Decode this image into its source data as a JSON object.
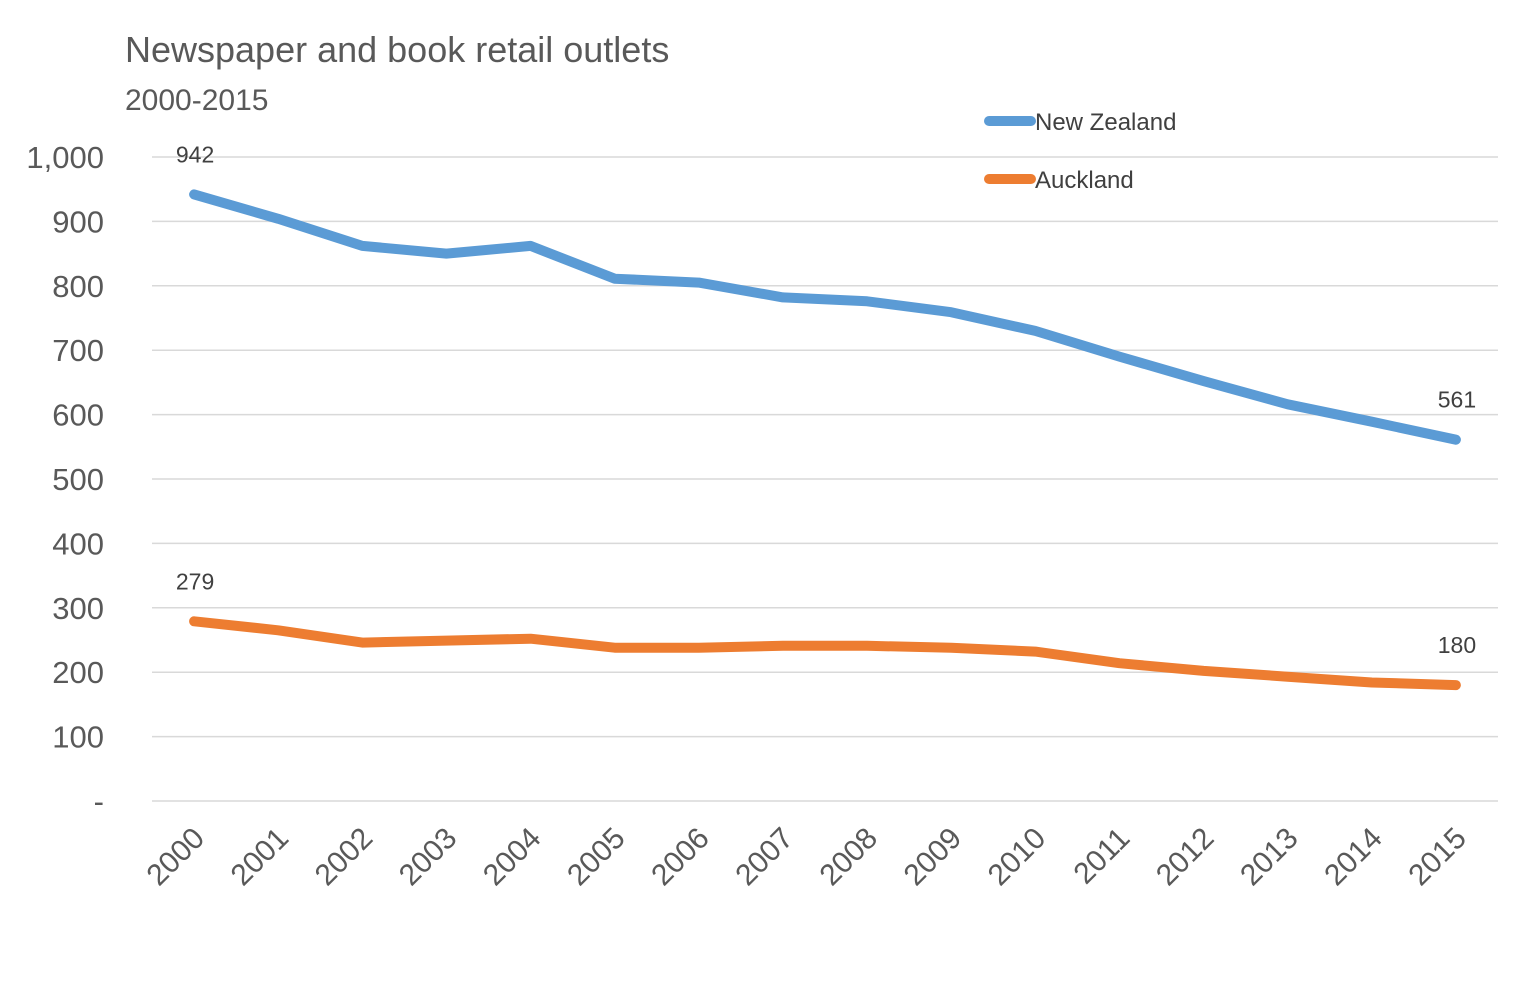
{
  "chart_data": {
    "type": "line",
    "title": "Newspaper and book retail outlets",
    "subtitle": "2000-2015",
    "xlabel": "",
    "ylabel": "",
    "categories": [
      "2000",
      "2001",
      "2002",
      "2003",
      "2004",
      "2005",
      "2006",
      "2007",
      "2008",
      "2009",
      "2010",
      "2011",
      "2012",
      "2013",
      "2014",
      "2015"
    ],
    "ylim": [
      0,
      1000
    ],
    "yticks": [
      0,
      100,
      200,
      300,
      400,
      500,
      600,
      700,
      800,
      900,
      1000
    ],
    "ytick_labels": [
      "-",
      "100",
      "200",
      "300",
      "400",
      "500",
      "600",
      "700",
      "800",
      "900",
      "1,000"
    ],
    "grid": true,
    "legend_position": "top-right",
    "series": [
      {
        "name": "New Zealand",
        "color": "#5b9bd5",
        "values": [
          942,
          904,
          862,
          850,
          862,
          811,
          805,
          782,
          776,
          759,
          730,
          690,
          652,
          616,
          589,
          561
        ],
        "labels": [
          {
            "index": 0,
            "text": "942"
          },
          {
            "index": 15,
            "text": "561"
          }
        ]
      },
      {
        "name": "Auckland",
        "color": "#ed7d31",
        "values": [
          279,
          265,
          246,
          249,
          252,
          238,
          238,
          241,
          241,
          238,
          232,
          214,
          202,
          193,
          184,
          180
        ],
        "labels": [
          {
            "index": 0,
            "text": "279"
          },
          {
            "index": 15,
            "text": "180"
          }
        ]
      }
    ]
  }
}
